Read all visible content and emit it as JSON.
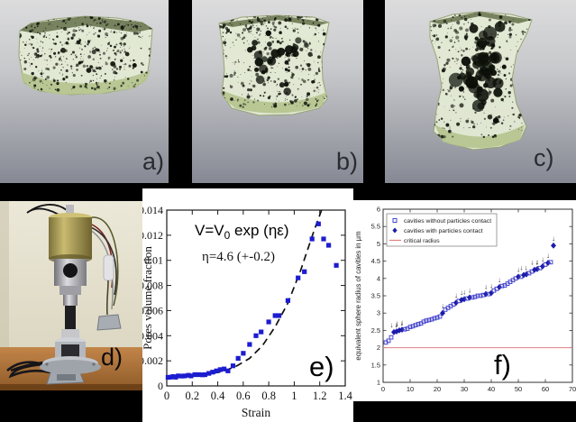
{
  "figure": {
    "background": "#000000",
    "caption_context": "multi-panel experimental figure: in-situ tomography of porous sample under tension, test rig photo, and cavity analysis plots"
  },
  "panels": {
    "a": {
      "label": "a)",
      "description": "3D tomography rendering, low strain, compact block"
    },
    "b": {
      "label": "b)",
      "description": "3D tomography rendering, intermediate strain, elongated block"
    },
    "c": {
      "label": "c)",
      "description": "3D tomography rendering, high strain, necked block with large cavities"
    },
    "d": {
      "label": "d)",
      "description": "photograph of in-situ tensile testing apparatus on wooden table"
    },
    "e": {
      "label": "e)",
      "description": "pores volume fraction vs strain with exponential fit"
    },
    "f": {
      "label": "f)",
      "description": "sorted equivalent sphere radius of cavities with critical radius line"
    }
  },
  "colors": {
    "marker_blue": "#1c1cd0",
    "open_marker_blue": "#4646cc",
    "filled_marker_blue": "#1c1caa",
    "critical_radius_red": "#e08080",
    "fit_line_black": "#111111",
    "sample_green": "#e4ebd4",
    "sample_base_green": "#b5c58f",
    "panel_gradient_top": "#dcdcdd",
    "panel_gradient_bottom": "#868994"
  },
  "chart_data": [
    {
      "id": "e",
      "type": "scatter",
      "title": "",
      "xlabel": "Strain",
      "ylabel": "Pores volume fraction",
      "xlim": [
        0,
        1.4
      ],
      "ylim": [
        0,
        0.014
      ],
      "xticks": [
        "0",
        "0.2",
        "0.4",
        "0.6",
        "0.8",
        "1",
        "1.2",
        "1.4"
      ],
      "yticks": [
        "0",
        "0.002",
        "0.004",
        "0.006",
        "0.008",
        "0.01",
        "0.012",
        "0.014"
      ],
      "grid": false,
      "legend_position": "none",
      "annotation_equation": {
        "pre": "V=V",
        "sub": "0",
        "post": " exp (ηε)"
      },
      "annotation_eta": "η=4.6 (+-0.2)",
      "marker": "filled-square",
      "marker_color": "#1c1cd0",
      "fit_line": {
        "style": "dashed",
        "color": "#111111",
        "points": [
          [
            0,
            0.00062
          ],
          [
            0.15,
            0.00072
          ],
          [
            0.3,
            0.00088
          ],
          [
            0.45,
            0.00118
          ],
          [
            0.55,
            0.0016
          ],
          [
            0.65,
            0.0022
          ],
          [
            0.75,
            0.0032
          ],
          [
            0.85,
            0.0047
          ],
          [
            0.95,
            0.0066
          ],
          [
            1.05,
            0.0092
          ],
          [
            1.15,
            0.0122
          ],
          [
            1.25,
            0.015
          ]
        ]
      },
      "points": [
        [
          0.01,
          0.00068
        ],
        [
          0.03,
          0.0007
        ],
        [
          0.05,
          0.00075
        ],
        [
          0.07,
          0.0007
        ],
        [
          0.09,
          0.0008
        ],
        [
          0.12,
          0.00078
        ],
        [
          0.14,
          0.0008
        ],
        [
          0.17,
          0.00085
        ],
        [
          0.19,
          0.0008
        ],
        [
          0.22,
          0.0009
        ],
        [
          0.25,
          0.0009
        ],
        [
          0.28,
          0.00088
        ],
        [
          0.3,
          0.0009
        ],
        [
          0.33,
          0.001
        ],
        [
          0.36,
          0.0011
        ],
        [
          0.39,
          0.0012
        ],
        [
          0.42,
          0.0013
        ],
        [
          0.45,
          0.00135
        ],
        [
          0.48,
          0.0012
        ],
        [
          0.52,
          0.0016
        ],
        [
          0.56,
          0.0022
        ],
        [
          0.6,
          0.0026
        ],
        [
          0.65,
          0.0033
        ],
        [
          0.7,
          0.004
        ],
        [
          0.74,
          0.0043
        ],
        [
          0.8,
          0.0051
        ],
        [
          0.85,
          0.0056
        ],
        [
          0.88,
          0.0056
        ],
        [
          0.95,
          0.0068
        ],
        [
          1.03,
          0.0086
        ],
        [
          1.08,
          0.0091
        ],
        [
          1.14,
          0.0117
        ],
        [
          1.19,
          0.0129
        ],
        [
          1.23,
          0.0117
        ],
        [
          1.27,
          0.0112
        ],
        [
          1.33,
          0.0096
        ]
      ]
    },
    {
      "id": "f",
      "type": "scatter",
      "title": "",
      "xlabel": "",
      "ylabel": "equivalent sphere radius of cavities in µm",
      "xlim": [
        0,
        70
      ],
      "ylim": [
        1,
        6
      ],
      "xticks": [
        "0",
        "10",
        "20",
        "30",
        "40",
        "50",
        "60",
        "70"
      ],
      "yticks": [
        "1",
        "1.5",
        "2",
        "2.5",
        "3",
        "3.5",
        "4",
        "4.5",
        "5",
        "5.5",
        "6"
      ],
      "grid": false,
      "legend_position": "top-left",
      "legend": [
        {
          "marker": "open-square",
          "color": "#4646cc",
          "label": "cavities without particles contact"
        },
        {
          "marker": "filled-diamond",
          "color": "#1c1caa",
          "label": "cavities with particles contact"
        },
        {
          "marker": "line",
          "color": "#e08080",
          "label": "critical radius"
        }
      ],
      "critical_radius": 2,
      "points_format": "[index, radius_um, particle_contact(0/1), arrows(0/1/2)]",
      "points": [
        [
          1,
          2.15,
          0,
          0
        ],
        [
          2,
          2.2,
          0,
          0
        ],
        [
          3,
          2.3,
          0,
          0
        ],
        [
          4,
          2.45,
          1,
          2
        ],
        [
          5,
          2.47,
          1,
          1
        ],
        [
          6,
          2.5,
          1,
          2
        ],
        [
          7,
          2.52,
          1,
          1
        ],
        [
          8,
          2.53,
          0,
          0
        ],
        [
          9,
          2.55,
          0,
          0
        ],
        [
          10,
          2.6,
          0,
          0
        ],
        [
          11,
          2.62,
          0,
          0
        ],
        [
          12,
          2.65,
          0,
          0
        ],
        [
          13,
          2.68,
          0,
          0
        ],
        [
          14,
          2.7,
          0,
          0
        ],
        [
          15,
          2.75,
          0,
          0
        ],
        [
          16,
          2.78,
          0,
          0
        ],
        [
          17,
          2.8,
          0,
          0
        ],
        [
          18,
          2.82,
          0,
          0
        ],
        [
          19,
          2.85,
          0,
          0
        ],
        [
          20,
          2.87,
          0,
          0
        ],
        [
          21,
          2.9,
          0,
          0
        ],
        [
          22,
          3.0,
          1,
          1
        ],
        [
          23,
          3.1,
          0,
          0
        ],
        [
          24,
          3.15,
          0,
          0
        ],
        [
          25,
          3.2,
          0,
          0
        ],
        [
          26,
          3.25,
          0,
          0
        ],
        [
          27,
          3.3,
          1,
          1
        ],
        [
          28,
          3.35,
          0,
          0
        ],
        [
          29,
          3.38,
          1,
          1
        ],
        [
          30,
          3.4,
          1,
          1
        ],
        [
          31,
          3.42,
          0,
          0
        ],
        [
          32,
          3.45,
          1,
          1
        ],
        [
          33,
          3.45,
          0,
          0
        ],
        [
          34,
          3.47,
          0,
          0
        ],
        [
          35,
          3.5,
          0,
          0
        ],
        [
          36,
          3.5,
          0,
          0
        ],
        [
          37,
          3.52,
          0,
          0
        ],
        [
          38,
          3.55,
          1,
          1
        ],
        [
          39,
          3.55,
          0,
          0
        ],
        [
          40,
          3.58,
          1,
          1
        ],
        [
          41,
          3.65,
          0,
          0
        ],
        [
          42,
          3.7,
          0,
          0
        ],
        [
          43,
          3.75,
          1,
          1
        ],
        [
          44,
          3.78,
          0,
          0
        ],
        [
          45,
          3.8,
          0,
          0
        ],
        [
          46,
          3.85,
          0,
          0
        ],
        [
          47,
          3.9,
          0,
          0
        ],
        [
          48,
          3.95,
          0,
          0
        ],
        [
          49,
          4.0,
          0,
          0
        ],
        [
          50,
          4.05,
          1,
          1
        ],
        [
          51,
          4.05,
          0,
          0
        ],
        [
          52,
          4.1,
          1,
          2
        ],
        [
          53,
          4.12,
          1,
          0
        ],
        [
          54,
          4.15,
          0,
          0
        ],
        [
          55,
          4.2,
          0,
          0
        ],
        [
          56,
          4.25,
          1,
          2
        ],
        [
          57,
          4.27,
          1,
          1
        ],
        [
          58,
          4.3,
          0,
          0
        ],
        [
          59,
          4.35,
          1,
          1
        ],
        [
          60,
          4.4,
          0,
          0
        ],
        [
          61,
          4.45,
          1,
          1
        ],
        [
          62,
          4.47,
          0,
          0
        ],
        [
          63,
          4.95,
          1,
          1
        ]
      ]
    }
  ]
}
